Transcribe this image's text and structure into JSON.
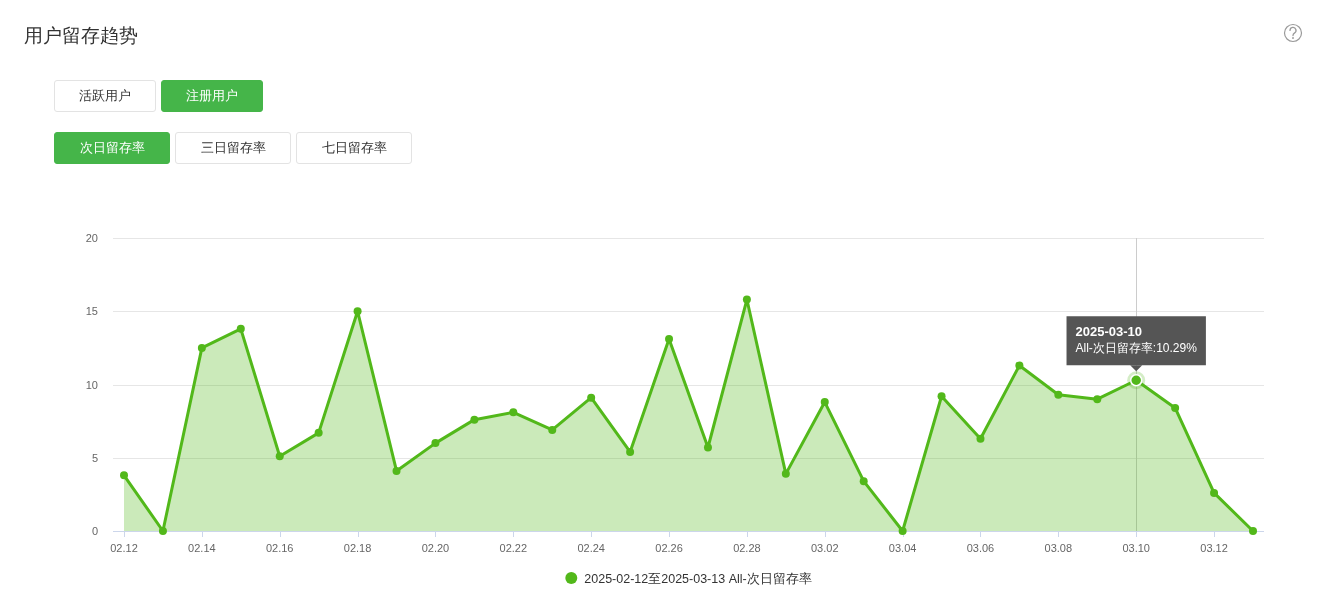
{
  "chart_data": {
    "type": "area",
    "title": "用户留存趋势",
    "categories": [
      "02.12",
      null,
      "02.14",
      null,
      "02.16",
      null,
      "02.18",
      null,
      "02.20",
      null,
      "02.22",
      null,
      "02.24",
      null,
      "02.26",
      null,
      "02.28",
      null,
      "03.02",
      null,
      "03.04",
      null,
      "03.06",
      null,
      "03.08",
      null,
      "03.10",
      null,
      "03.12",
      null
    ],
    "series": [
      {
        "name": "2025-02-12至2025-03-13 All-次日留存率",
        "color": "#52b81a",
        "values": [
          3.8,
          0,
          12.5,
          13.8,
          5.1,
          6.7,
          15.0,
          4.1,
          6.0,
          7.6,
          8.1,
          6.9,
          9.1,
          5.4,
          13.1,
          5.7,
          15.8,
          3.9,
          8.8,
          3.4,
          0,
          9.2,
          6.3,
          11.3,
          9.3,
          9.0,
          10.29,
          8.4,
          2.6,
          0
        ]
      }
    ],
    "ylim": [
      0,
      20
    ],
    "yticks": [
      0,
      5,
      10,
      15,
      20
    ],
    "grid": "y",
    "legend": "bottom",
    "marker": "circle",
    "annotations": [
      "活跃用户",
      "注册用户",
      "次日留存率",
      "三日留存率",
      "七日留存率",
      "2025-03-10",
      {
        "text": "All-次日留存率:10.29%",
        "x": "03.10",
        "y": 10.29
      }
    ]
  }
}
